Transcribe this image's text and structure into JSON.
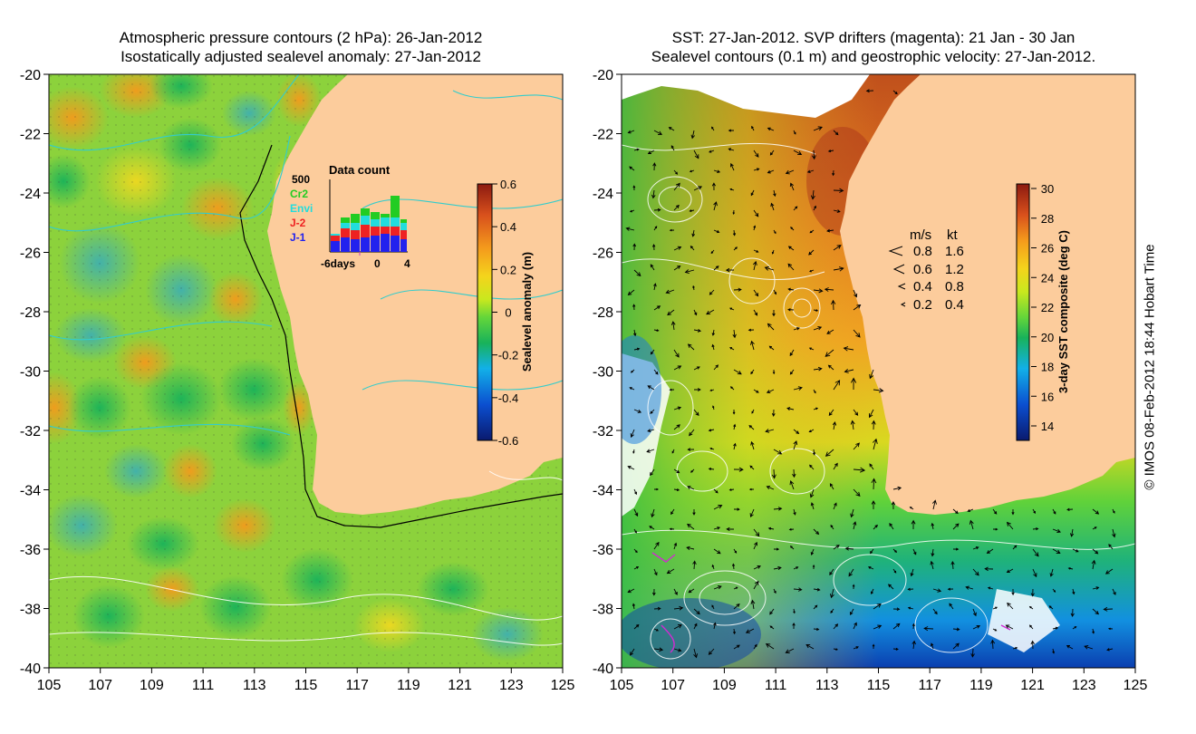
{
  "left_panel": {
    "title_line1": "Atmospheric pressure contours (2 hPa): 26-Jan-2012",
    "title_line2": "Isostatically adjusted sealevel anomaly: 27-Jan-2012",
    "colorbar": {
      "label": "Sealevel anomaly (m)",
      "ticks": [
        "0.6",
        "0.4",
        "0.2",
        "0",
        "-0.2",
        "-0.4",
        "-0.6"
      ],
      "colors": [
        "#0a1a6e",
        "#0b4fd0",
        "#12b0e8",
        "#18b25a",
        "#64d63a",
        "#c9e81e",
        "#f4d41c",
        "#f49a1c",
        "#d8501c",
        "#8c1a10"
      ]
    },
    "inset": {
      "title": "Data count",
      "ymax_label": "500",
      "x_labels": [
        "-6days",
        "0",
        "4"
      ],
      "missions": [
        {
          "name": "Cr2",
          "color": "#22cc22"
        },
        {
          "name": "Envi",
          "color": "#22dddd"
        },
        {
          "name": "J-2",
          "color": "#ee2222"
        },
        {
          "name": "J-1",
          "color": "#2222ee"
        }
      ]
    },
    "x_ticks": [
      "105",
      "107",
      "109",
      "111",
      "113",
      "115",
      "117",
      "119",
      "121",
      "123",
      "125"
    ],
    "y_ticks": [
      "-20",
      "-22",
      "-24",
      "-26",
      "-28",
      "-30",
      "-32",
      "-34",
      "-36",
      "-38",
      "-40"
    ]
  },
  "right_panel": {
    "title_line1": "SST: 27-Jan-2012. SVP drifters (magenta): 21 Jan - 30 Jan",
    "title_line2": "Sealevel contours (0.1 m) and geostrophic velocity: 27-Jan-2012.",
    "colorbar": {
      "label": "3-day SST composite (deg C)",
      "ticks": [
        "30",
        "28",
        "26",
        "24",
        "22",
        "20",
        "18",
        "16",
        "14"
      ],
      "colors": [
        "#0a1a6e",
        "#0b4fd0",
        "#12b0e8",
        "#18b25a",
        "#64d63a",
        "#c9e81e",
        "#f4d41c",
        "#f49a1c",
        "#d8501c",
        "#8c1a10"
      ]
    },
    "legend": {
      "header_ms": "m/s",
      "header_kt": "kt",
      "rows": [
        {
          "ms": "0.8",
          "kt": "1.6"
        },
        {
          "ms": "0.6",
          "kt": "1.2"
        },
        {
          "ms": "0.4",
          "kt": "0.8"
        },
        {
          "ms": "0.2",
          "kt": "0.4"
        }
      ]
    },
    "x_ticks": [
      "105",
      "107",
      "109",
      "111",
      "113",
      "115",
      "117",
      "119",
      "121",
      "123",
      "125"
    ],
    "y_ticks": [
      "-20",
      "-22",
      "-24",
      "-26",
      "-28",
      "-30",
      "-32",
      "-34",
      "-36",
      "-38",
      "-40"
    ]
  },
  "copyright": "© IMOS 08-Feb-2012 18:44 Hobart Time",
  "colors": {
    "land": "#fccc9c",
    "pressure_contour": "#33cccc",
    "isobath": "#000000",
    "ssh_contour": "#ffffff",
    "arrow": "#000000"
  }
}
